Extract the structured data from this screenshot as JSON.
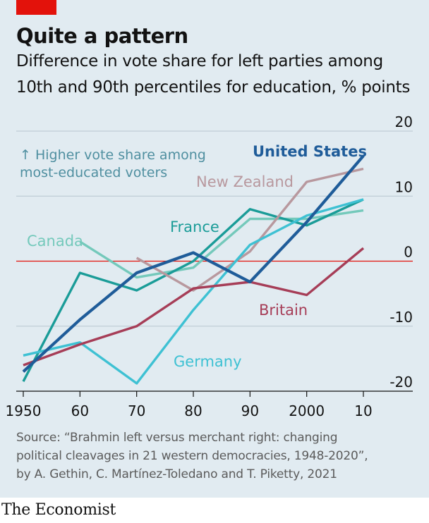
{
  "header": {
    "title": "Quite a pattern",
    "subtitle_line1": "Difference in vote share for left parties among",
    "subtitle_line2": "10th and 90th percentiles for education, % points"
  },
  "brand_color": "#e3120b",
  "chart_data": {
    "type": "line",
    "categories": [
      "1950",
      "60",
      "70",
      "80",
      "90",
      "2000",
      "10"
    ],
    "x": [
      1950,
      1960,
      1970,
      1980,
      1990,
      2000,
      2010
    ],
    "ylim": [
      -20,
      20
    ],
    "yticks": [
      20,
      10,
      0,
      -10,
      -20
    ],
    "ytick_labels": [
      "20",
      "10",
      "0",
      "-10",
      "-20"
    ],
    "grid": true,
    "annotation_line1": "↑ Higher vote share among",
    "annotation_line2": "most-educated voters",
    "series": [
      {
        "name": "Canada",
        "color": "#74c9bb",
        "points": [
          [
            1960,
            3
          ],
          [
            1970,
            -2.5
          ],
          [
            1980,
            -1
          ],
          [
            1990,
            6.5
          ],
          [
            2000,
            6.5
          ],
          [
            2010,
            7.8
          ]
        ]
      },
      {
        "name": "France",
        "color": "#1a9c98",
        "points": [
          [
            1950,
            -18.5
          ],
          [
            1960,
            -1.8
          ],
          [
            1970,
            -4.5
          ],
          [
            1980,
            0
          ],
          [
            1990,
            8
          ],
          [
            2000,
            5.5
          ],
          [
            2010,
            9.5
          ]
        ]
      },
      {
        "name": "New Zealand",
        "color": "#b8989e",
        "points": [
          [
            1970,
            0.5
          ],
          [
            1980,
            -4.5
          ],
          [
            1990,
            1.5
          ],
          [
            2000,
            12.2
          ],
          [
            2010,
            14.2
          ]
        ]
      },
      {
        "name": "Germany",
        "color": "#3ec1d3",
        "points": [
          [
            1950,
            -14.5
          ],
          [
            1960,
            -12.5
          ],
          [
            1970,
            -18.8
          ],
          [
            1980,
            -7.5
          ],
          [
            1990,
            2.5
          ],
          [
            2000,
            7
          ],
          [
            2010,
            9.5
          ]
        ]
      },
      {
        "name": "Britain",
        "color": "#a63d57",
        "points": [
          [
            1950,
            -16
          ],
          [
            1960,
            -12.8
          ],
          [
            1970,
            -10
          ],
          [
            1980,
            -4.2
          ],
          [
            1990,
            -3.2
          ],
          [
            2000,
            -5.2
          ],
          [
            2010,
            2
          ]
        ]
      },
      {
        "name": "United States",
        "color": "#1f5c99",
        "points": [
          [
            1950,
            -17
          ],
          [
            1960,
            -9
          ],
          [
            1970,
            -1.8
          ],
          [
            1980,
            1.3
          ],
          [
            1990,
            -3.2
          ],
          [
            2000,
            6
          ],
          [
            2010,
            16.2
          ]
        ]
      }
    ]
  },
  "source": {
    "line1": "Source: “Brahmin left versus merchant right: changing",
    "line2": "political cleavages in 21 western democracies, 1948-2020”,",
    "line3": "by A. Gethin, C. Martínez-Toledano and T. Piketty, 2021"
  },
  "footer": "The Economist"
}
